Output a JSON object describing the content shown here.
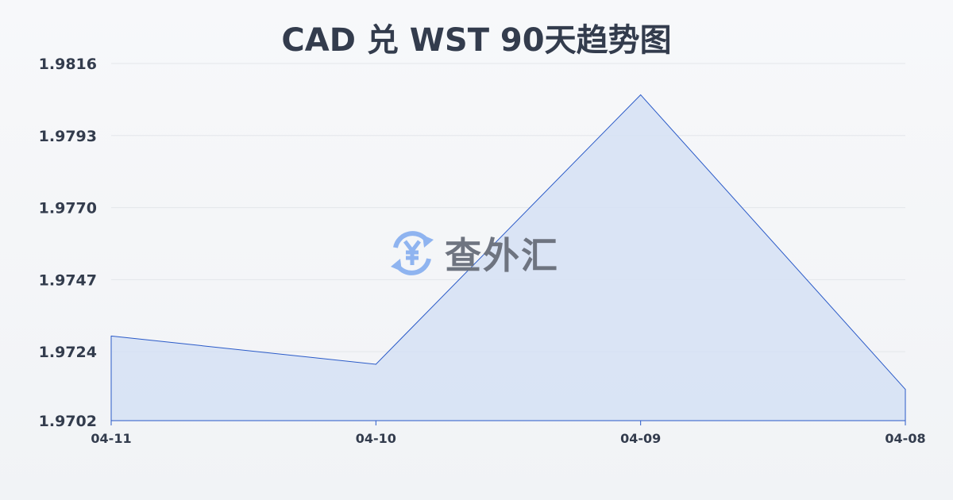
{
  "chart_data": {
    "type": "area",
    "title": "CAD 兑 WST 90天趋势图",
    "xlabel": "",
    "ylabel": "",
    "categories": [
      "04-11",
      "04-10",
      "04-09",
      "04-08"
    ],
    "values": [
      1.9729,
      1.972,
      1.9806,
      1.9712
    ],
    "yticks": [
      "1.9702",
      "1.9724",
      "1.9747",
      "1.9770",
      "1.9793",
      "1.9816"
    ],
    "ylim": [
      1.9702,
      1.9816
    ],
    "grid": true,
    "colors": {
      "line": "#2a5ac8",
      "fill": "#d5e0f5",
      "grid": "#e3e6ea",
      "text": "#333c4d"
    }
  },
  "watermark": {
    "text": "查外汇",
    "icon": "yen-exchange-icon",
    "color": "#8fb4f0"
  }
}
